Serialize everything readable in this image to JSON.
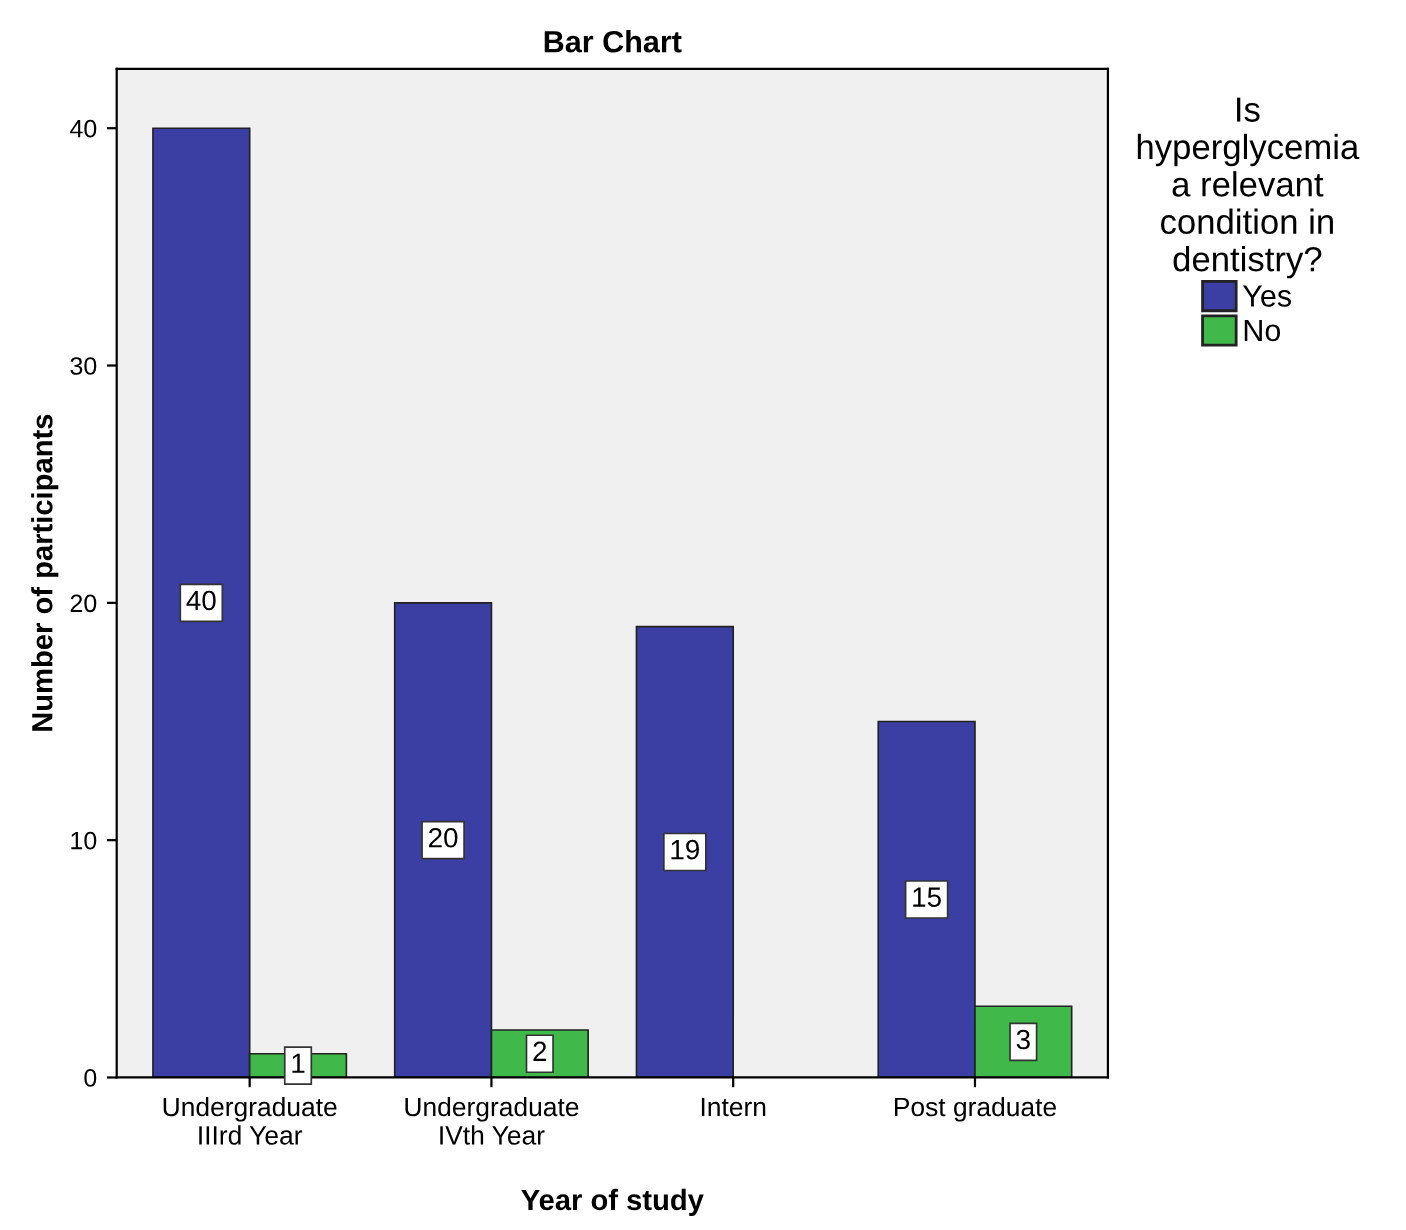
{
  "chart_data": {
    "type": "bar",
    "title": "Bar Chart",
    "xlabel": "Year of study",
    "ylabel": "Number of participants",
    "legend_title": "Is\nhyperglycemia\na relevant\ncondition in\ndentistry?",
    "categories": [
      "Undergraduate\nIIIrd Year",
      "Undergraduate\nIVth Year",
      "Intern",
      "Post graduate"
    ],
    "series": [
      {
        "name": "Yes",
        "color": "#3b3fa3",
        "values": [
          40,
          20,
          19,
          15
        ]
      },
      {
        "name": "No",
        "color": "#41b84a",
        "values": [
          1,
          2,
          null,
          3
        ]
      }
    ],
    "ylim": [
      0,
      42.5
    ],
    "yticks": [
      0,
      10,
      20,
      30,
      40
    ],
    "data_labels": true,
    "legend": "right",
    "grid": false
  }
}
